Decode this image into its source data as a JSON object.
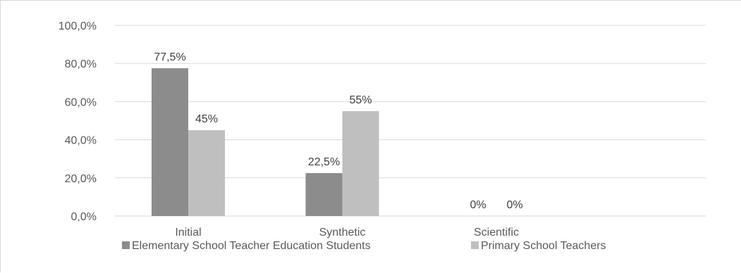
{
  "chart_data": {
    "type": "bar",
    "categories": [
      "Initial",
      "Synthetic",
      "Scientific"
    ],
    "series": [
      {
        "name": "Elementary School Teacher Education Students",
        "color": "#8c8c8c",
        "values": [
          77.5,
          22.5,
          0
        ],
        "labels": [
          "77,5%",
          "22,5%",
          "0%"
        ]
      },
      {
        "name": "Primary School Teachers",
        "color": "#bfbfbf",
        "values": [
          45,
          55,
          0
        ],
        "labels": [
          "45%",
          "55%",
          "0%"
        ]
      }
    ],
    "ylim": [
      0,
      100
    ],
    "yticks": [
      0,
      20,
      40,
      60,
      80,
      100
    ],
    "ytick_labels": [
      "0,0%",
      "20,0%",
      "40,0%",
      "60,0%",
      "80,0%",
      "100,0%"
    ],
    "grid": true,
    "gridline_color": "#d9d9d9",
    "legend_position": "bottom",
    "title": "",
    "xlabel": "",
    "ylabel": ""
  }
}
